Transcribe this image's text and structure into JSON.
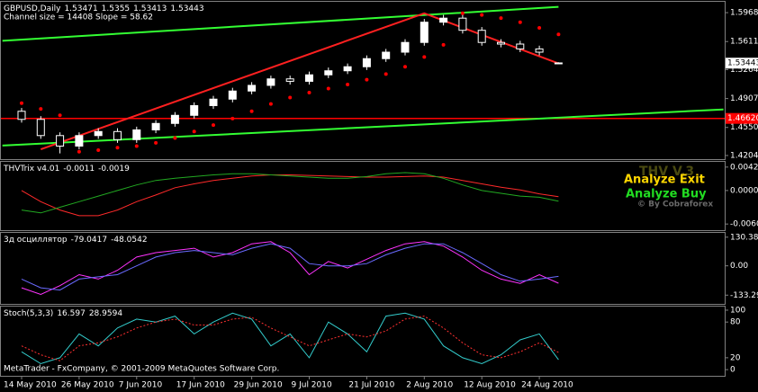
{
  "chart_data": [
    {
      "type": "candlestick",
      "title": "GBPUSD,Daily",
      "header_values": [
        1.53471,
        1.5355,
        1.53413,
        1.53443
      ],
      "subtitle": "Channel size = 14408 Slope = 58.62",
      "categories": [
        "14 May 2010",
        null,
        null,
        "26 May 2010",
        null,
        null,
        "7 Jun 2010",
        null,
        null,
        "17 Jun 2010",
        null,
        null,
        "29 Jun 2010",
        null,
        null,
        "9 Jul 2010",
        null,
        null,
        "21 Jul 2010",
        null,
        null,
        "2 Aug 2010",
        null,
        null,
        "12 Aug 2010",
        null,
        null,
        "24 Aug 2010",
        null
      ],
      "open": [
        1.475,
        1.465,
        1.445,
        1.432,
        1.445,
        1.45,
        1.44,
        1.452,
        1.46,
        1.47,
        1.482,
        1.49,
        1.5,
        1.507,
        1.515,
        1.512,
        1.52,
        1.525,
        1.53,
        1.54,
        1.548,
        1.56,
        1.585,
        1.59,
        1.575,
        1.56,
        1.558,
        1.552,
        1.53471
      ],
      "high": [
        1.479,
        1.469,
        1.449,
        1.449,
        1.454,
        1.454,
        1.456,
        1.464,
        1.474,
        1.486,
        1.494,
        1.504,
        1.511,
        1.519,
        1.519,
        1.524,
        1.529,
        1.534,
        1.544,
        1.552,
        1.564,
        1.589,
        1.594,
        1.594,
        1.579,
        1.564,
        1.562,
        1.556,
        1.5355
      ],
      "low": [
        1.461,
        1.441,
        1.423,
        1.428,
        1.441,
        1.436,
        1.436,
        1.448,
        1.456,
        1.466,
        1.478,
        1.486,
        1.496,
        1.503,
        1.508,
        1.508,
        1.516,
        1.521,
        1.526,
        1.536,
        1.544,
        1.556,
        1.581,
        1.571,
        1.556,
        1.554,
        1.548,
        1.544,
        1.53413
      ],
      "close": [
        1.465,
        1.445,
        1.432,
        1.445,
        1.45,
        1.44,
        1.452,
        1.46,
        1.47,
        1.482,
        1.49,
        1.5,
        1.507,
        1.515,
        1.512,
        1.52,
        1.525,
        1.53,
        1.54,
        1.548,
        1.56,
        1.585,
        1.59,
        1.575,
        1.56,
        1.558,
        1.552,
        1.548,
        1.53443
      ],
      "up_color": "#ffffff",
      "down_color": "#000000",
      "wick_color": "#ffffff",
      "sar": {
        "color": "#ff0000",
        "values": [
          1.485,
          1.478,
          1.47,
          1.425,
          1.427,
          1.43,
          1.432,
          1.436,
          1.442,
          1.45,
          1.458,
          1.466,
          1.475,
          1.484,
          1.492,
          1.498,
          1.503,
          1.508,
          1.514,
          1.521,
          1.53,
          1.542,
          1.557,
          1.596,
          1.594,
          1.59,
          1.585,
          1.578,
          1.57
        ]
      },
      "overlays": [
        {
          "color": "#33ff33",
          "x": [
            -1,
            28
          ],
          "values": [
            1.562,
            1.604
          ]
        },
        {
          "color": "#33ff33",
          "x": [
            -1,
            36.6
          ],
          "values": [
            1.4327,
            1.4773
          ]
        },
        {
          "color": "#ff2020",
          "x": [
            1,
            21,
            28
          ],
          "values": [
            1.428,
            1.596,
            1.534
          ]
        }
      ],
      "level": {
        "value": 1.4662,
        "label": "1.46620",
        "color": "#ff0000"
      },
      "price_label": 1.53443,
      "ylim": [
        1.4159,
        1.6113
      ],
      "yticks": [
        {
          "value": 1.5968,
          "label": "1.59680"
        },
        {
          "value": 1.5611,
          "label": "1.56110"
        },
        {
          "value": 1.52645,
          "label": "1.52645"
        },
        {
          "value": 1.4907,
          "label": "1.49070"
        },
        {
          "value": 1.45505,
          "label": "1.45505"
        },
        {
          "value": 1.4204,
          "label": "1.42040"
        }
      ],
      "grid": false,
      "footer": "MetaTrader - FxCompany, © 2001-2009 MetaQuotes Software Corp."
    },
    {
      "type": "line",
      "title": "THVTrix v4.01",
      "header_values": [
        -0.0011,
        -0.0019
      ],
      "series": [
        {
          "color": "#ff2a2a",
          "values": [
            0.0,
            -0.002,
            -0.0035,
            -0.0045,
            -0.0045,
            -0.0035,
            -0.002,
            -0.0008,
            0.0005,
            0.0012,
            0.0018,
            0.0022,
            0.0026,
            0.0028,
            0.0028,
            0.0027,
            0.0026,
            0.0025,
            0.0024,
            0.0024,
            0.0025,
            0.0026,
            0.0024,
            0.0018,
            0.0012,
            0.0006,
            0.0001,
            -0.0006,
            -0.0011
          ]
        },
        {
          "color": "#22aa22",
          "values": [
            -0.0035,
            -0.004,
            -0.003,
            -0.002,
            -0.001,
            0.0,
            0.001,
            0.0018,
            0.0022,
            0.0025,
            0.0028,
            0.003,
            0.003,
            0.0028,
            0.0026,
            0.0024,
            0.0022,
            0.0022,
            0.0025,
            0.003,
            0.0032,
            0.003,
            0.0022,
            0.001,
            0.0,
            -0.0005,
            -0.001,
            -0.0012,
            -0.0019
          ]
        }
      ],
      "annotations": [
        {
          "text": "THV V.3",
          "color": "#4a4a10"
        },
        {
          "text": "Analyze Exit",
          "color": "#ffd700"
        },
        {
          "text": "Analyze Buy",
          "color": "#22dd22"
        },
        {
          "text": "© By Cobraforex",
          "color": "#6a6a6a"
        }
      ],
      "ylim": [
        -0.0071,
        0.0053
      ],
      "yticks": [
        0.0042,
        {
          "value": 0,
          "label": "0.0000"
        },
        {
          "value": -0.006,
          "label": "-0.0060"
        }
      ]
    },
    {
      "type": "line",
      "title": "3д осциллятор",
      "header_values": [
        -79.0417,
        -48.0542
      ],
      "series": [
        {
          "color": "#ff33ff",
          "values": [
            -100,
            -130,
            -90,
            -40,
            -60,
            -20,
            40,
            60,
            70,
            80,
            40,
            60,
            100,
            110,
            60,
            -40,
            20,
            -10,
            30,
            70,
            100,
            110,
            90,
            40,
            -20,
            -60,
            -80,
            -40,
            -79.0417
          ]
        },
        {
          "color": "#6a6aff",
          "values": [
            -60,
            -100,
            -110,
            -60,
            -50,
            -40,
            0,
            40,
            60,
            70,
            60,
            50,
            80,
            100,
            80,
            10,
            0,
            0,
            10,
            50,
            80,
            100,
            100,
            60,
            10,
            -40,
            -70,
            -60,
            -48.0542
          ]
        }
      ],
      "ylim": [
        -173,
        154
      ],
      "yticks": [
        130.382,
        {
          "value": 0,
          "label": "0.00"
        },
        -133.295
      ]
    },
    {
      "type": "line",
      "title": "Stoch(5,3,3)",
      "header_values": [
        16.597,
        28.9594
      ],
      "series": [
        {
          "color": "#33cccc",
          "values": [
            30,
            10,
            20,
            60,
            40,
            70,
            85,
            80,
            90,
            60,
            80,
            95,
            85,
            40,
            60,
            20,
            80,
            60,
            30,
            90,
            95,
            85,
            40,
            20,
            10,
            25,
            50,
            60,
            16.597
          ]
        },
        {
          "color": "#ff3030",
          "dash": true,
          "values": [
            40,
            25,
            15,
            40,
            45,
            55,
            70,
            80,
            85,
            75,
            75,
            85,
            88,
            70,
            55,
            40,
            50,
            60,
            55,
            65,
            85,
            90,
            70,
            45,
            25,
            20,
            30,
            45,
            28.9594
          ]
        }
      ],
      "ylim": [
        -10.4,
        107.5
      ],
      "yticks": [
        100,
        80,
        20,
        0
      ]
    }
  ]
}
